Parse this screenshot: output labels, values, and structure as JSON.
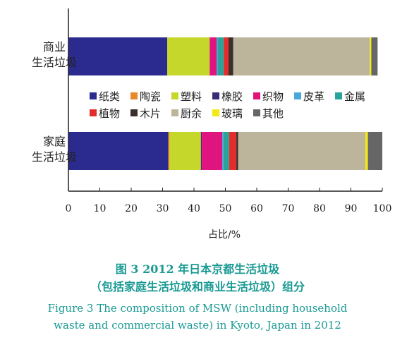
{
  "chart_data": {
    "type": "bar",
    "orientation": "horizontal",
    "stacked": true,
    "categories": [
      "商业\n生活垃圾",
      "家庭\n生活垃圾"
    ],
    "series": [
      {
        "name": "纸类",
        "color": "#2b2b8f",
        "values": [
          31.5,
          31.8
        ]
      },
      {
        "name": "陶瓷",
        "color": "#e8892a",
        "values": [
          0.0,
          0.4
        ]
      },
      {
        "name": "塑料",
        "color": "#c5d72b",
        "values": [
          13.5,
          10.0
        ]
      },
      {
        "name": "橡胶",
        "color": "#3a2b7a",
        "values": [
          0.0,
          0.3
        ]
      },
      {
        "name": "织物",
        "color": "#e0147f",
        "values": [
          2.2,
          6.5
        ]
      },
      {
        "name": "皮革",
        "color": "#4aa6dc",
        "values": [
          0.3,
          0.4
        ]
      },
      {
        "name": "金属",
        "color": "#2aa39a",
        "values": [
          2.0,
          1.8
        ]
      },
      {
        "name": "植物",
        "color": "#e32c2c",
        "values": [
          1.5,
          2.3
        ]
      },
      {
        "name": "木片",
        "color": "#3a2f2a",
        "values": [
          1.5,
          0.6
        ]
      },
      {
        "name": "厨余",
        "color": "#bdb49c",
        "values": [
          43.5,
          40.5
        ]
      },
      {
        "name": "玻璃",
        "color": "#f2ea16",
        "values": [
          0.5,
          0.8
        ]
      },
      {
        "name": "其他",
        "color": "#666666",
        "values": [
          2.0,
          4.6
        ]
      }
    ],
    "xlabel": "占比/%",
    "ylabel": "",
    "xlim": [
      0,
      100
    ],
    "xticks": [
      0,
      10,
      20,
      30,
      40,
      50,
      60,
      70,
      80,
      90,
      100
    ],
    "legend_position": "center",
    "grid": false
  },
  "caption": {
    "zh_line1": "图 3   2012 年日本京都生活垃圾",
    "zh_line2": "（包括家庭生活垃圾和商业生活垃圾）组分",
    "en_line1": "Figure 3   The composition of MSW  (including household",
    "en_line2": "waste and commercial waste)  in Kyoto, Japan in 2012"
  }
}
